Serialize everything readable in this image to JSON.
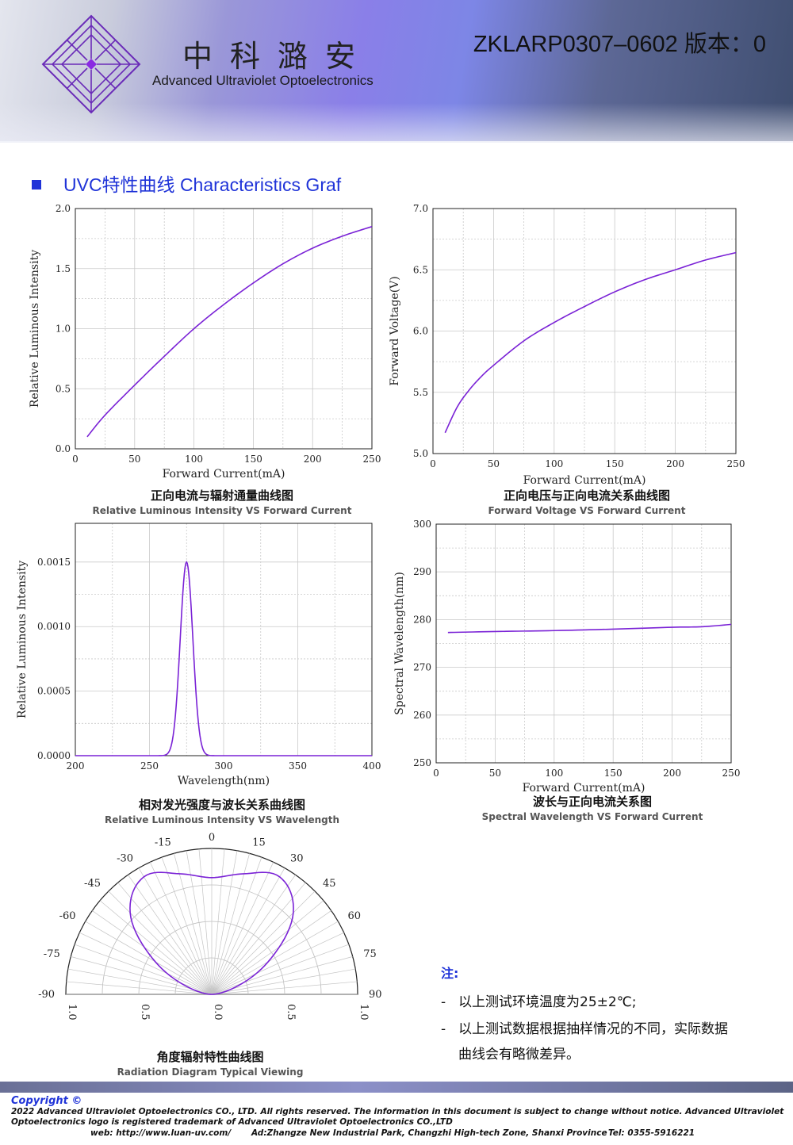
{
  "header": {
    "brand_cn": "中科潞安",
    "brand_en": "Advanced Ultraviolet Optoelectronics",
    "doc_number": "ZKLARP0307–0602 版本：0"
  },
  "section": {
    "title": "UVC特性曲线 Characteristics Graf"
  },
  "colors": {
    "accent": "#1f33d8",
    "curve": "#7a22d6"
  },
  "charts": {
    "c1": {
      "ylabel": "Relative Luminous Intensity",
      "xlabel": "Forward Current(mA)",
      "caption_cn": "正向电流与辐射通量曲线图",
      "caption_en": "Relative Luminous Intensity VS Forward Current"
    },
    "c2": {
      "ylabel": "Forward Voltage(V)",
      "xlabel": "Forward Current(mA)",
      "caption_cn": "正向电压与正向电流关系曲线图",
      "caption_en": "Forward Voltage VS Forward Current"
    },
    "c3": {
      "ylabel": "Relative Luminous Intensity",
      "xlabel": "Wavelength(nm)",
      "caption_cn": "相对发光强度与波长关系曲线图",
      "caption_en": "Relative Luminous Intensity VS Wavelength"
    },
    "c4": {
      "ylabel": "Spectral Wavelength(nm)",
      "xlabel": "Forward Current(mA)",
      "caption_cn": "波长与正向电流关系图",
      "caption_en": "Spectral Wavelength VS Forward Current"
    },
    "c5": {
      "caption_cn": "角度辐射特性曲线图",
      "caption_en": "Radiation Diagram Typical Viewing"
    }
  },
  "chart_data": [
    {
      "type": "line",
      "x": [
        10,
        25,
        50,
        75,
        100,
        125,
        150,
        175,
        200,
        225,
        250
      ],
      "y": [
        0.1,
        0.28,
        0.53,
        0.77,
        1.0,
        1.2,
        1.38,
        1.54,
        1.67,
        1.77,
        1.85
      ],
      "xlim": [
        0,
        250
      ],
      "ylim": [
        0.0,
        2.0
      ],
      "xticks": [
        "0",
        "50",
        "100",
        "150",
        "200",
        "250"
      ],
      "yticks": [
        "0.0",
        "0.5",
        "1.0",
        "1.5",
        "2.0"
      ],
      "grid": true
    },
    {
      "type": "line",
      "x": [
        10,
        20,
        30,
        40,
        50,
        75,
        100,
        125,
        150,
        175,
        200,
        225,
        250
      ],
      "y": [
        5.17,
        5.38,
        5.52,
        5.63,
        5.72,
        5.92,
        6.07,
        6.2,
        6.32,
        6.42,
        6.5,
        6.58,
        6.64
      ],
      "xlim": [
        0,
        250
      ],
      "ylim": [
        5.0,
        7.0
      ],
      "xticks": [
        "0",
        "50",
        "100",
        "150",
        "200",
        "250"
      ],
      "yticks": [
        "5.0",
        "5.5",
        "6.0",
        "6.5",
        "7.0"
      ],
      "grid": true
    },
    {
      "type": "line",
      "peak_x": 275,
      "peak_y": 0.0015,
      "fwhm": 10,
      "xlim": [
        200,
        400
      ],
      "ylim": [
        0.0,
        0.0018
      ],
      "xticks": [
        "200",
        "250",
        "300",
        "350",
        "400"
      ],
      "yticks": [
        "0.0000",
        "0.0005",
        "0.0010",
        "0.0015"
      ],
      "grid": true
    },
    {
      "type": "line",
      "x": [
        10,
        50,
        100,
        150,
        200,
        225,
        250
      ],
      "y": [
        277.3,
        277.5,
        277.7,
        278.0,
        278.4,
        278.5,
        279.0
      ],
      "xlim": [
        0,
        250
      ],
      "ylim": [
        250,
        300
      ],
      "xticks": [
        "0",
        "50",
        "100",
        "150",
        "200",
        "250"
      ],
      "yticks": [
        "250",
        "260",
        "270",
        "280",
        "290",
        "300"
      ],
      "grid": true
    },
    {
      "type": "polar",
      "angles": [
        -90,
        -75,
        -60,
        -45,
        -30,
        -15,
        0,
        15,
        30,
        45,
        60,
        75,
        90
      ],
      "angle_labels": [
        "-90",
        "-75",
        "-60",
        "-45",
        "-30",
        "-15",
        "0",
        "15",
        "30",
        "45",
        "60",
        "75",
        "90"
      ],
      "radial_labels": [
        "1.0",
        "0.5",
        "0.0",
        "0.5",
        "1.0"
      ],
      "intensity": [
        0.0,
        0.15,
        0.48,
        0.85,
        1.0,
        0.92,
        0.86,
        0.92,
        1.0,
        0.85,
        0.48,
        0.15,
        0.0
      ]
    }
  ],
  "notes": {
    "title": "注:",
    "items": [
      "以上测试环境温度为25±2℃;",
      "以上测试数据根据抽样情况的不同，实际数据"
    ],
    "item2_cont": "曲线会有略微差异。"
  },
  "footer": {
    "copyright": "Copyright ©",
    "legal": "2022 Advanced Ultraviolet Optoelectronics CO., LTD. All rights reserved. The information in this document is subject to change without notice. Advanced Ultraviolet Optoelectronics logo is registered trademark of Advanced Ultraviolet Optoelectronics CO.,LTD",
    "web": "web: http://www.luan-uv.com/",
    "address": "Ad:Zhangze New Industrial Park, Changzhi High-tech Zone, Shanxi Province",
    "tel": "Tel:  0355-5916221"
  }
}
